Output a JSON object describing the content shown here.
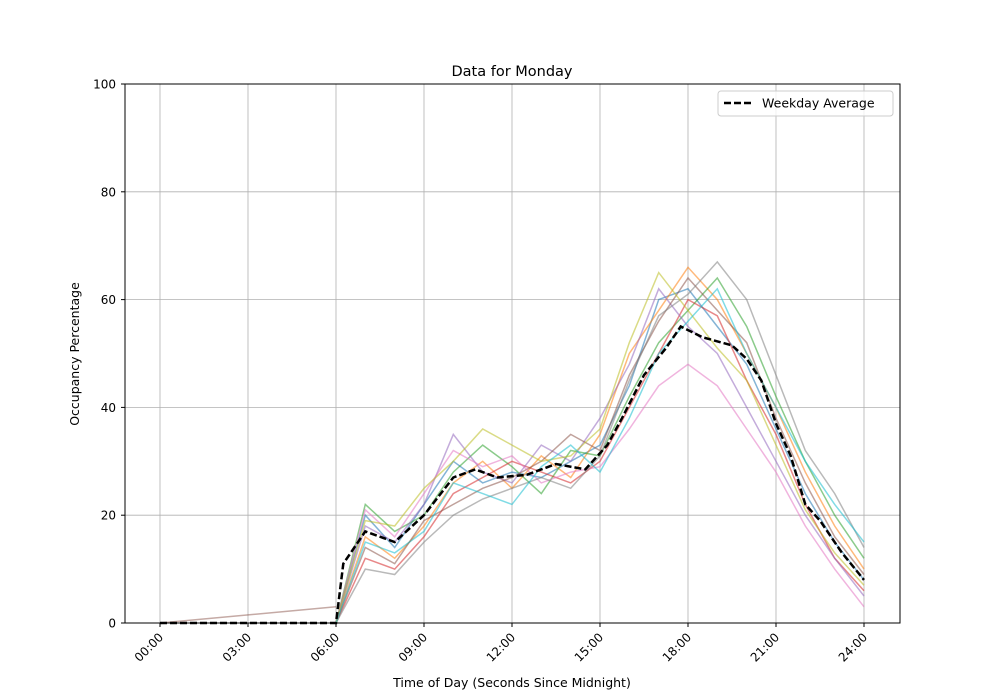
{
  "chart_data": {
    "type": "line",
    "title": "Data for Monday",
    "xlabel": "Time of Day (Seconds Since Midnight)",
    "ylabel": "Occupancy Percentage",
    "xlim_hours": [
      -1.2,
      25.2
    ],
    "ylim": [
      0,
      100
    ],
    "grid": true,
    "legend_placement": "top-right",
    "x_tick_labels": [
      "00:00",
      "03:00",
      "06:00",
      "09:00",
      "12:00",
      "15:00",
      "18:00",
      "21:00",
      "24:00"
    ],
    "y_ticks": [
      0,
      20,
      40,
      60,
      80,
      100
    ],
    "average": {
      "name": "Weekday Average",
      "color": "#000000",
      "style": "dashed",
      "x_hours": [
        0,
        6,
        6.25,
        7,
        8,
        9,
        10,
        10.75,
        11.5,
        12.5,
        13.5,
        14.5,
        15.25,
        15.75,
        16.5,
        17.25,
        17.75,
        18.5,
        19.5,
        20,
        20.5,
        21,
        21.5,
        22,
        22.5,
        23.25,
        24
      ],
      "values": [
        0,
        0,
        11,
        17,
        15,
        20,
        27,
        28.5,
        27,
        27.5,
        29.5,
        28.5,
        33,
        38,
        46,
        51,
        55,
        53,
        51.5,
        49,
        45,
        37,
        31,
        22,
        19,
        13,
        8
      ]
    },
    "night_series": {
      "x_hours": [
        0,
        6
      ],
      "values": [
        0,
        3
      ],
      "color": "#8c564b"
    },
    "series_x_hours": [
      6,
      7,
      8,
      9,
      10,
      11,
      12,
      13,
      14,
      15,
      16,
      17,
      18,
      19,
      20,
      21,
      22,
      23,
      24
    ],
    "series_colors": [
      "#1f77b4",
      "#ff7f0e",
      "#2ca02c",
      "#d62728",
      "#9467bd",
      "#8c564b",
      "#e377c2",
      "#7f7f7f",
      "#bcbd22",
      "#17becf"
    ],
    "series": [
      {
        "values": [
          0,
          20,
          14,
          22,
          30,
          26,
          28,
          27,
          30,
          33,
          44,
          60,
          62,
          55,
          48,
          36,
          24,
          15,
          8
        ]
      },
      {
        "values": [
          0,
          16,
          12,
          18,
          26,
          30,
          25,
          31,
          27,
          35,
          50,
          58,
          66,
          60,
          50,
          40,
          28,
          18,
          10
        ]
      },
      {
        "values": [
          0,
          22,
          17,
          20,
          28,
          33,
          29,
          24,
          32,
          31,
          42,
          52,
          58,
          64,
          55,
          42,
          30,
          20,
          12
        ]
      },
      {
        "values": [
          0,
          12,
          10,
          16,
          24,
          27,
          30,
          28,
          26,
          30,
          40,
          50,
          60,
          57,
          45,
          35,
          22,
          12,
          6
        ]
      },
      {
        "values": [
          0,
          18,
          15,
          22,
          35,
          28,
          26,
          33,
          30,
          38,
          48,
          62,
          55,
          50,
          40,
          30,
          20,
          12,
          5
        ]
      },
      {
        "values": [
          0,
          14,
          11,
          19,
          22,
          25,
          27,
          30,
          35,
          32,
          46,
          56,
          64,
          58,
          52,
          38,
          26,
          16,
          9
        ]
      },
      {
        "values": [
          0,
          21,
          16,
          24,
          32,
          29,
          31,
          26,
          28,
          29,
          36,
          44,
          48,
          44,
          36,
          28,
          18,
          10,
          3
        ]
      },
      {
        "values": [
          0,
          10,
          9,
          15,
          20,
          23,
          25,
          27,
          25,
          31,
          45,
          57,
          61,
          67,
          60,
          46,
          32,
          24,
          14
        ]
      },
      {
        "values": [
          0,
          19,
          18,
          25,
          30,
          36,
          33,
          30,
          31,
          36,
          52,
          65,
          58,
          51,
          45,
          33,
          21,
          13,
          7
        ]
      },
      {
        "values": [
          0,
          15,
          13,
          17,
          26,
          24,
          22,
          29,
          33,
          28,
          38,
          50,
          56,
          62,
          50,
          40,
          30,
          22,
          15
        ]
      }
    ]
  }
}
